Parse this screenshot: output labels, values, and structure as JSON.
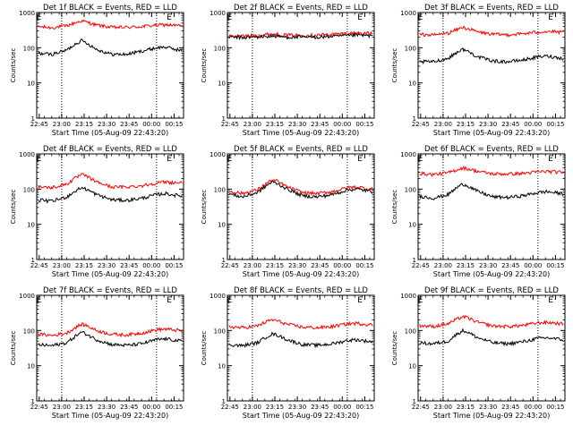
{
  "chart_data": {
    "type": "line",
    "panel_title_suffix": "BLACK = Events, RED = LLD",
    "ylabel": "Counts/sec",
    "xlabel": "Start Time (05-Aug-09 22:43:20)",
    "yscale": "log",
    "ylim": [
      1,
      1000
    ],
    "y_ticks": [
      "1",
      "10",
      "100",
      "1000"
    ],
    "x_ticks": [
      "22:45",
      "23:00",
      "23:15",
      "23:30",
      "23:45",
      "00:00",
      "00:15"
    ],
    "x_tick_minutes": [
      1.67,
      16.67,
      31.67,
      46.67,
      61.67,
      76.67,
      91.67
    ],
    "xlim_minutes": [
      0,
      98
    ],
    "marker_label": "E",
    "marker_minutes": [
      1.5,
      88.5
    ],
    "dotted_lines_minutes": [
      16.67,
      80.0
    ],
    "series_colors": {
      "events": "#000000",
      "lld": "#ff0000"
    },
    "time_samples_minutes": [
      0,
      10,
      20,
      27,
      30,
      33,
      40,
      50,
      60,
      70,
      80,
      86,
      90,
      96
    ],
    "panels": [
      {
        "title": "Det 1f BLACK = Events, RED = LLD",
        "events": [
          70,
          65,
          85,
          140,
          160,
          140,
          90,
          65,
          65,
          80,
          100,
          105,
          95,
          85
        ],
        "lld": [
          400,
          370,
          420,
          530,
          580,
          540,
          440,
          380,
          380,
          400,
          440,
          450,
          440,
          420
        ]
      },
      {
        "title": "Det 2f BLACK = Events, RED = LLD",
        "events": [
          200,
          195,
          200,
          210,
          215,
          210,
          200,
          200,
          200,
          210,
          220,
          230,
          225,
          220
        ],
        "lld": [
          220,
          215,
          225,
          240,
          245,
          240,
          230,
          225,
          230,
          240,
          255,
          265,
          260,
          255
        ]
      },
      {
        "title": "Det 3f BLACK = Events, RED = LLD",
        "events": [
          40,
          40,
          50,
          80,
          90,
          80,
          55,
          42,
          40,
          45,
          55,
          58,
          55,
          50
        ],
        "lld": [
          240,
          230,
          260,
          340,
          380,
          350,
          280,
          240,
          235,
          250,
          280,
          290,
          285,
          270
        ]
      },
      {
        "title": "Det 4f BLACK = Events, RED = LLD",
        "events": [
          50,
          45,
          60,
          95,
          110,
          100,
          70,
          50,
          48,
          55,
          70,
          75,
          70,
          65
        ],
        "lld": [
          120,
          110,
          140,
          220,
          260,
          235,
          160,
          115,
          115,
          125,
          150,
          160,
          155,
          150
        ]
      },
      {
        "title": "Det 5f BLACK = Events, RED = LLD",
        "events": [
          75,
          60,
          80,
          135,
          160,
          145,
          100,
          65,
          60,
          70,
          95,
          100,
          95,
          85
        ],
        "lld": [
          90,
          75,
          95,
          155,
          180,
          170,
          115,
          80,
          75,
          85,
          110,
          115,
          110,
          100
        ]
      },
      {
        "title": "Det 6f BLACK = Events, RED = LLD",
        "events": [
          65,
          55,
          70,
          120,
          140,
          125,
          85,
          60,
          58,
          65,
          80,
          85,
          80,
          75
        ],
        "lld": [
          280,
          260,
          290,
          370,
          400,
          380,
          320,
          270,
          270,
          280,
          310,
          320,
          310,
          300
        ]
      },
      {
        "title": "Det 7f BLACK = Events, RED = LLD",
        "events": [
          40,
          37,
          45,
          75,
          90,
          80,
          55,
          40,
          38,
          42,
          55,
          58,
          55,
          50
        ],
        "lld": [
          80,
          72,
          85,
          130,
          150,
          140,
          100,
          78,
          75,
          85,
          105,
          110,
          105,
          100
        ]
      },
      {
        "title": "Det 8f BLACK = Events, RED = LLD",
        "events": [
          40,
          37,
          45,
          70,
          80,
          75,
          55,
          40,
          38,
          42,
          52,
          55,
          52,
          48
        ],
        "lld": [
          130,
          120,
          135,
          185,
          200,
          190,
          150,
          125,
          120,
          130,
          155,
          160,
          155,
          145
        ]
      },
      {
        "title": "Det 9f BLACK = Events, RED = LLD",
        "events": [
          45,
          42,
          50,
          85,
          100,
          90,
          62,
          45,
          42,
          48,
          60,
          62,
          60,
          55
        ],
        "lld": [
          140,
          130,
          155,
          220,
          250,
          230,
          170,
          135,
          130,
          140,
          165,
          170,
          165,
          155
        ]
      }
    ]
  }
}
